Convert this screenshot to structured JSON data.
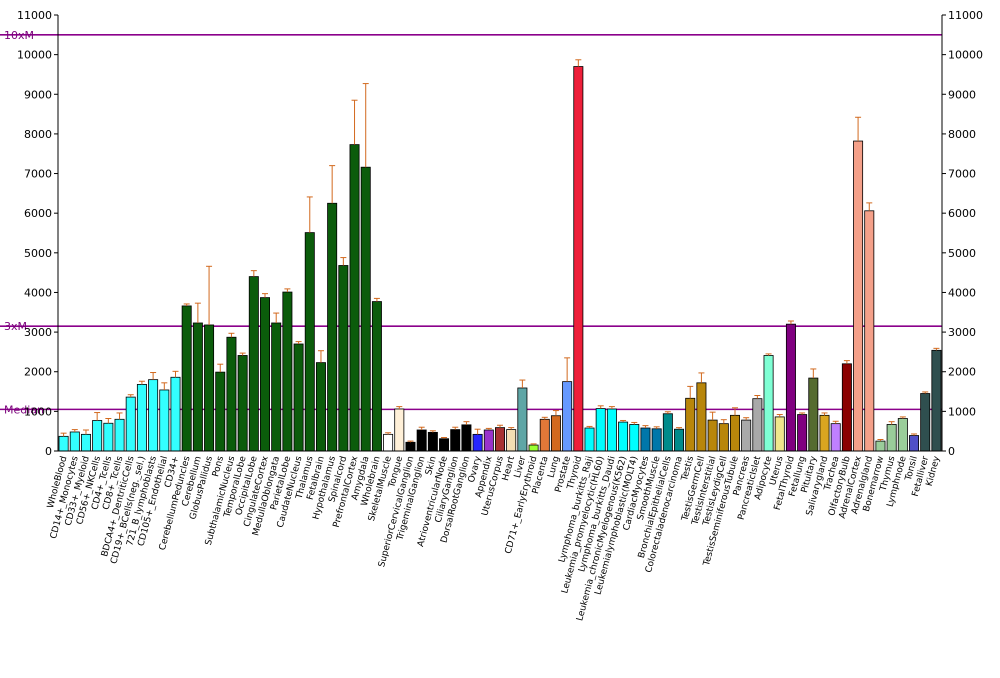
{
  "chart_data": {
    "type": "bar",
    "ylim": [
      0,
      11000
    ],
    "yticks": [
      0,
      1000,
      2000,
      3000,
      4000,
      5000,
      6000,
      7000,
      8000,
      9000,
      10000,
      11000
    ],
    "ytick_labels": [
      "0",
      "1000",
      "2000",
      "3000",
      "4000",
      "5000",
      "6000",
      "7000",
      "8000",
      "9000",
      "10000",
      "11000"
    ],
    "reference_lines": [
      {
        "label": "10xM",
        "value": 10500,
        "color": "#8b008b"
      },
      {
        "label": "3xM",
        "value": 3150,
        "color": "#8b008b"
      },
      {
        "label": "Median",
        "value": 1050,
        "color": "#8b008b"
      }
    ],
    "categories": [
      "WholeBlood",
      "CD14+_Monocytes",
      "CD33+_Myeloid",
      "CD56+_NKCells",
      "CD4+_Tcells",
      "CD8+_Tcells",
      "BDCA4+_DentriticCells",
      "CD19+_BCells(neg._sel.)",
      "721_B_lymphoblasts",
      "CD105+_Endothelial",
      "CD34+",
      "CerebellumPeduncles",
      "Cerebellum",
      "GlobusPallidus",
      "Pons",
      "SubthalamicNucleus",
      "TemporalLobe",
      "OccipitalLobe",
      "CingulateCortex",
      "MedullaOblongata",
      "ParietalLobe",
      "CaudateNucleus",
      "Thalamus",
      "Fetalbrain",
      "Hypothalamus",
      "Spinalcord",
      "PrefrontalCortex",
      "Amygdala",
      "Wholebrain",
      "SkeletalMuscle",
      "Tongue",
      "SuperiorCervicalGanglion",
      "TrigeminalGanglion",
      "Skin",
      "AtrioventricularNode",
      "CiliaryGanglion",
      "DorsalRootGanglion",
      "Ovary",
      "Appendix",
      "UterusCorpus",
      "Heart",
      "Liver",
      "CD71+_EarlyErythroid",
      "Placenta",
      "Lung",
      "Prostate",
      "Thyroid",
      "Lymphoma_burkitts_Raji",
      "Leukemia_promyelocytic(HL60)",
      "Lymphoma_burkitts_Daudi",
      "Leukemia_chronicMyelogenous(K562)",
      "Leukemialymphoblastic(MOLT4)",
      "CardiacMyocytes",
      "SmoothMuscle",
      "BronchialEpithelialCells",
      "Colorectaladenocarcinoma",
      "Testis",
      "TestisGermCell",
      "TestisInterstitial",
      "TestisLeydigCell",
      "TestisSeminiferousTubule",
      "Pancreas",
      "PancreaticIslet",
      "Adipocyte",
      "Uterus",
      "FetalThyroid",
      "Fetallung",
      "Pituitary",
      "Salivarygland",
      "Trachea",
      "OlfactoryBulb",
      "AdrenalCortex",
      "Adrenalgland",
      "Bonemarrow",
      "Thymus",
      "Lymphnode",
      "Tonsil",
      "Fetalliver",
      "Kidney"
    ],
    "category_labels": [
      "WholeBlood",
      "CD14+_Monocytes",
      "CD33+_Myeloid",
      "CD56+_NKCells",
      "CD4+_Tcells",
      "CD8+_Tcells",
      "BDCA4+_DentriticCells",
      "CD19+_BCells(neg._sel.)",
      "721_B_lymphoblasts",
      "CD105+_Endothelial",
      "CD34+",
      "CerebellumPeduncles",
      "Cerebellum",
      "GlobusPallidus",
      "Pons",
      "SubthalamicNucleus",
      "TemporalLobe",
      "OccipitalLobe",
      "CingulateCortex",
      "MedullaOblongata",
      "ParietalLobe",
      "CaudateNucleus",
      "Thalamus",
      "Fetalbrain",
      "Hypothalamus",
      "Spinalcord",
      "PrefrontalCortex",
      "Amygdala",
      "Wholebrain",
      "SkeletalMuscle",
      "Tongue",
      "SuperiorCervicalGanglion",
      "TrigeminalGanglion",
      "Skin",
      "AtrioventricularNode",
      "CiliaryGanglion",
      "DorsalRootGanglion",
      "Ovary",
      "Appendix",
      "UterusCorpus",
      "Heart",
      "Liver",
      "CD71+_EarlyErythroid",
      "Placenta",
      "Lung",
      "Prostate",
      "Thyroid",
      "Lymphoma_burkitts_Raji",
      "Leukemia_promyelocytic(HL60)",
      "Lymphoma_burkitts_Daudi",
      "Leukemia_chronicMyelogenous(K562)",
      "Leukemialymphoblastic(MOLT4)",
      "CardiacMyocytes",
      "SmoothMuscle",
      "BronchialEpithelialCells",
      "Colorectaladenocarcinoma",
      "Testis",
      "TestisGermCell",
      "TestisInterstitial",
      "TestisLeydigCell",
      "TestisSeminiferousTubule",
      "Pancreas",
      "PancreaticIslet",
      "Adipocyte",
      "Uterus",
      "FetalThyroid",
      "Fetallung",
      "Pituitary",
      "Salivarygland",
      "Trachea",
      "OlfactoryBulb",
      "AdrenalCortex",
      "Adrenalgland",
      "Bonemarrow",
      "Thymus",
      "Lymphnode",
      "Tonsil",
      "Fetalliver",
      "Kidney"
    ],
    "values": [
      370,
      480,
      420,
      770,
      700,
      800,
      1360,
      1680,
      1800,
      1540,
      1860,
      3660,
      3230,
      3180,
      1990,
      2870,
      2410,
      4400,
      3870,
      3230,
      4010,
      2700,
      5510,
      2230,
      6250,
      4680,
      7730,
      7160,
      3770,
      420,
      1060,
      220,
      530,
      470,
      310,
      540,
      660,
      420,
      530,
      590,
      540,
      1590,
      150,
      800,
      890,
      1750,
      9700,
      580,
      1070,
      1060,
      730,
      670,
      580,
      560,
      940,
      550,
      1330,
      1720,
      780,
      690,
      900,
      780,
      1320,
      2410,
      860,
      3200,
      920,
      1840,
      900,
      690,
      2200,
      7820,
      6060,
      250,
      670,
      820,
      390,
      1450,
      2540
    ],
    "errors": [
      80,
      60,
      110,
      200,
      120,
      160,
      60,
      80,
      180,
      180,
      150,
      50,
      500,
      1480,
      200,
      100,
      60,
      150,
      100,
      250,
      80,
      60,
      900,
      300,
      950,
      200,
      1120,
      2110,
      80,
      40,
      60,
      30,
      70,
      40,
      30,
      60,
      80,
      130,
      40,
      60,
      50,
      200,
      30,
      50,
      130,
      600,
      170,
      40,
      70,
      60,
      40,
      50,
      60,
      50,
      50,
      40,
      300,
      250,
      200,
      100,
      190,
      60,
      80,
      40,
      60,
      80,
      40,
      230,
      60,
      60,
      80,
      600,
      200,
      40,
      70,
      40,
      40,
      40,
      50
    ],
    "bar_colors": [
      "#33ffff",
      "#33ffff",
      "#33ffff",
      "#33ffff",
      "#33ffff",
      "#33ffff",
      "#33ffff",
      "#33ffff",
      "#33ffff",
      "#33ffff",
      "#33ffff",
      "#0b5c0b",
      "#0b5c0b",
      "#0b5c0b",
      "#0b5c0b",
      "#0b5c0b",
      "#0b5c0b",
      "#0b5c0b",
      "#0b5c0b",
      "#0b5c0b",
      "#0b5c0b",
      "#0b5c0b",
      "#0b5c0b",
      "#0b5c0b",
      "#0b5c0b",
      "#0b5c0b",
      "#0b5c0b",
      "#0b5c0b",
      "#0b5c0b",
      "#ffffff",
      "#fff0d8",
      "#000000",
      "#000000",
      "#000000",
      "#000000",
      "#000000",
      "#000000",
      "#2626ff",
      "#9933cc",
      "#a83232",
      "#f5deb3",
      "#5fa6a6",
      "#99ff33",
      "#e07838",
      "#d2691e",
      "#6699ff",
      "#ee1f3a",
      "#00ffff",
      "#00ffff",
      "#00ffff",
      "#00ffff",
      "#00ffff",
      "#0077aa",
      "#0077aa",
      "#008b8b",
      "#008b8b",
      "#b8860b",
      "#b8860b",
      "#b8860b",
      "#b8860b",
      "#b8860b",
      "#a9a9a9",
      "#a9a9a9",
      "#7fffd4",
      "#f0e68c",
      "#800080",
      "#800080",
      "#556b2f",
      "#daa520",
      "#c080ff",
      "#8b0000",
      "#f4a089",
      "#f4a089",
      "#9acd9a",
      "#9acd9a",
      "#9acd9a",
      "#5050c8",
      "#2f4f4f",
      "#2f4f4f"
    ],
    "bar_color_legend_names": [
      "cyan",
      "dark-green",
      "white",
      "cream",
      "black",
      "blue",
      "purple",
      "brown",
      "wheat",
      "teal",
      "lime",
      "orange",
      "chocolate",
      "cornflower",
      "crimson",
      "aqua",
      "steel-blue",
      "dark-cyan",
      "goldenrod",
      "gray",
      "aquamarine",
      "khaki",
      "violet",
      "olive",
      "gold",
      "lavender",
      "maroon",
      "salmon",
      "pale-green",
      "slate",
      "dark-slate"
    ],
    "error_color": "#d2691e",
    "grid": false,
    "legend": "none"
  }
}
